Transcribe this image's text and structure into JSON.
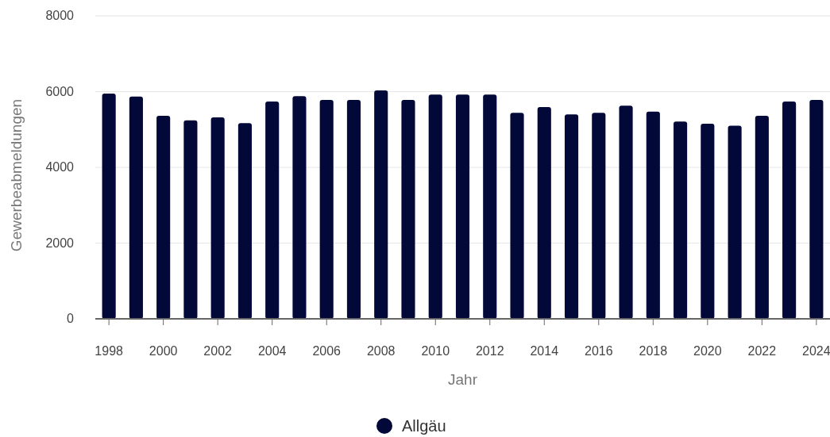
{
  "chart_data": {
    "type": "bar",
    "xlabel": "Jahr",
    "ylabel": "Gewerbeabmeldungen",
    "x": [
      1998,
      1999,
      2000,
      2001,
      2002,
      2003,
      2004,
      2005,
      2006,
      2007,
      2008,
      2009,
      2010,
      2011,
      2012,
      2013,
      2014,
      2015,
      2016,
      2017,
      2018,
      2019,
      2020,
      2021,
      2022,
      2023,
      2024
    ],
    "series": [
      {
        "name": "Allgäu",
        "color": "#020838",
        "values": [
          5950,
          5870,
          5360,
          5240,
          5320,
          5170,
          5740,
          5880,
          5780,
          5780,
          6030,
          5780,
          5920,
          5920,
          5920,
          5440,
          5590,
          5400,
          5440,
          5630,
          5470,
          5210,
          5150,
          5100,
          5360,
          5740,
          5780
        ]
      }
    ],
    "xlim": [
      1997.5,
      2024.5
    ],
    "xticks": [
      1998,
      2000,
      2002,
      2004,
      2006,
      2008,
      2010,
      2012,
      2014,
      2016,
      2018,
      2020,
      2022,
      2024
    ],
    "ylim": [
      0,
      8000
    ],
    "yticks": [
      0,
      2000,
      4000,
      6000,
      8000
    ],
    "grid": "y",
    "legend": "bottom",
    "marker": "circle"
  }
}
